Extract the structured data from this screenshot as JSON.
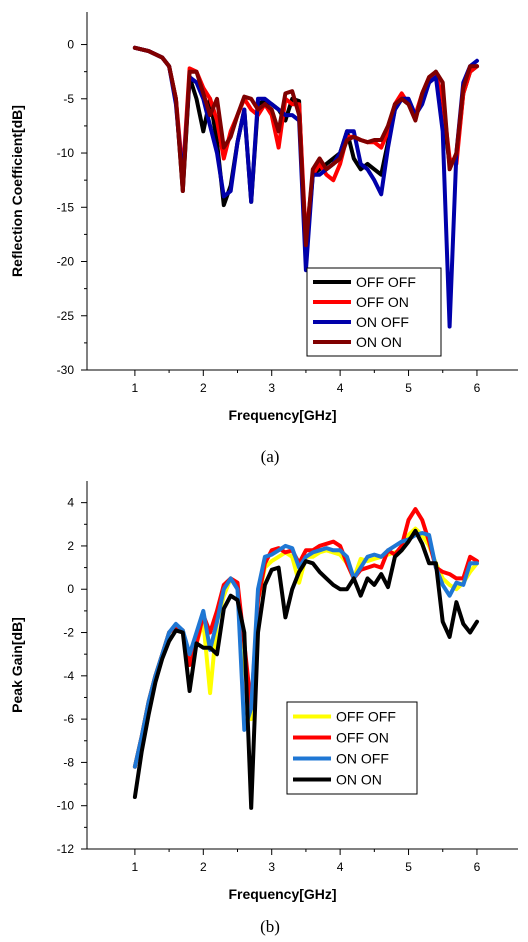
{
  "chart_data": [
    {
      "type": "line",
      "caption": "(a)",
      "xlabel": "Frequency[GHz]",
      "ylabel": "Reflection Coefficient[dB]",
      "xlim": [
        0.3,
        6.6
      ],
      "ylim": [
        -30,
        3
      ],
      "xticks": [
        1,
        2,
        3,
        4,
        5,
        6
      ],
      "yticks": [
        0,
        -5,
        -10,
        -15,
        -20,
        -25,
        -30
      ],
      "legend_position": "bottom-right",
      "series": [
        {
          "name": "OFF OFF",
          "color": "#000000",
          "x": [
            1.0,
            1.2,
            1.4,
            1.5,
            1.6,
            1.7,
            1.8,
            1.9,
            2.0,
            2.1,
            2.2,
            2.3,
            2.4,
            2.5,
            2.6,
            2.7,
            2.8,
            2.9,
            3.0,
            3.1,
            3.2,
            3.3,
            3.4,
            3.5,
            3.6,
            3.7,
            3.8,
            3.9,
            4.0,
            4.1,
            4.2,
            4.3,
            4.4,
            4.5,
            4.6,
            4.7,
            4.8,
            4.9,
            5.0,
            5.1,
            5.2,
            5.3,
            5.4,
            5.5,
            5.6,
            5.7,
            5.8,
            5.9,
            6.0
          ],
          "y": [
            -0.3,
            -0.6,
            -1.2,
            -2.0,
            -5.0,
            -13.5,
            -3.0,
            -5.0,
            -8.0,
            -5.0,
            -9.0,
            -14.8,
            -13.0,
            -9.0,
            -6.0,
            -14.5,
            -5.5,
            -5.2,
            -5.5,
            -6.0,
            -7.0,
            -5.0,
            -5.2,
            -19.5,
            -12.0,
            -11.5,
            -11.0,
            -10.5,
            -10.0,
            -8.0,
            -10.5,
            -11.5,
            -11.0,
            -11.5,
            -12.0,
            -9.0,
            -6.0,
            -5.0,
            -5.5,
            -6.5,
            -5.0,
            -3.5,
            -2.5,
            -6.0,
            -11.0,
            -10.5,
            -4.5,
            -2.5,
            -2.0
          ]
        },
        {
          "name": "OFF ON",
          "color": "#ff0000",
          "x": [
            1.0,
            1.2,
            1.4,
            1.5,
            1.6,
            1.7,
            1.8,
            1.9,
            2.0,
            2.1,
            2.2,
            2.3,
            2.4,
            2.5,
            2.6,
            2.7,
            2.8,
            2.9,
            3.0,
            3.1,
            3.2,
            3.3,
            3.4,
            3.5,
            3.6,
            3.7,
            3.8,
            3.9,
            4.0,
            4.1,
            4.2,
            4.3,
            4.4,
            4.5,
            4.6,
            4.7,
            4.8,
            4.9,
            5.0,
            5.1,
            5.2,
            5.3,
            5.4,
            5.5,
            5.6,
            5.7,
            5.8,
            5.9,
            6.0
          ],
          "y": [
            -0.3,
            -0.6,
            -1.2,
            -2.0,
            -5.0,
            -12.0,
            -2.2,
            -2.5,
            -4.0,
            -5.0,
            -7.0,
            -10.5,
            -8.0,
            -6.5,
            -5.0,
            -6.0,
            -6.5,
            -5.5,
            -6.5,
            -9.5,
            -5.0,
            -5.5,
            -5.5,
            -18.0,
            -12.0,
            -11.0,
            -12.0,
            -12.5,
            -11.0,
            -8.5,
            -8.5,
            -8.8,
            -9.0,
            -9.0,
            -9.5,
            -8.0,
            -5.5,
            -4.5,
            -5.5,
            -6.5,
            -4.5,
            -3.0,
            -2.8,
            -5.0,
            -10.5,
            -11.0,
            -4.5,
            -2.5,
            -2.0
          ]
        },
        {
          "name": "ON OFF",
          "color": "#0000aa",
          "x": [
            1.0,
            1.2,
            1.4,
            1.5,
            1.6,
            1.7,
            1.8,
            1.9,
            2.0,
            2.1,
            2.2,
            2.3,
            2.4,
            2.5,
            2.6,
            2.7,
            2.8,
            2.9,
            3.0,
            3.1,
            3.2,
            3.3,
            3.4,
            3.5,
            3.6,
            3.7,
            3.8,
            3.9,
            4.0,
            4.1,
            4.2,
            4.3,
            4.4,
            4.5,
            4.6,
            4.7,
            4.8,
            4.9,
            5.0,
            5.1,
            5.2,
            5.3,
            5.4,
            5.5,
            5.6,
            5.7,
            5.8,
            5.9,
            6.0
          ],
          "y": [
            -0.3,
            -0.6,
            -1.2,
            -2.0,
            -5.5,
            -12.5,
            -3.0,
            -3.5,
            -5.0,
            -7.5,
            -10.0,
            -14.0,
            -13.5,
            -9.0,
            -6.0,
            -14.5,
            -5.0,
            -5.0,
            -5.5,
            -6.0,
            -6.5,
            -6.5,
            -7.0,
            -20.8,
            -12.0,
            -12.0,
            -11.5,
            -11.0,
            -10.0,
            -8.0,
            -8.0,
            -11.0,
            -11.5,
            -12.5,
            -13.8,
            -9.5,
            -6.0,
            -5.0,
            -5.0,
            -6.5,
            -5.5,
            -3.5,
            -3.0,
            -8.0,
            -26.0,
            -10.0,
            -3.5,
            -2.0,
            -1.5
          ]
        },
        {
          "name": "ON ON",
          "color": "#800000",
          "x": [
            1.0,
            1.2,
            1.4,
            1.5,
            1.6,
            1.7,
            1.8,
            1.9,
            2.0,
            2.1,
            2.2,
            2.3,
            2.4,
            2.5,
            2.6,
            2.7,
            2.8,
            2.9,
            3.0,
            3.1,
            3.2,
            3.3,
            3.4,
            3.5,
            3.6,
            3.7,
            3.8,
            3.9,
            4.0,
            4.1,
            4.2,
            4.3,
            4.4,
            4.5,
            4.6,
            4.7,
            4.8,
            4.9,
            5.0,
            5.1,
            5.2,
            5.3,
            5.4,
            5.5,
            5.6,
            5.7,
            5.8,
            5.9,
            6.0
          ],
          "y": [
            -0.3,
            -0.6,
            -1.2,
            -2.0,
            -5.0,
            -13.5,
            -2.5,
            -2.5,
            -4.5,
            -6.5,
            -5.0,
            -9.5,
            -8.5,
            -6.5,
            -4.8,
            -5.0,
            -6.0,
            -5.5,
            -6.0,
            -8.0,
            -4.5,
            -4.3,
            -6.5,
            -18.5,
            -11.5,
            -10.5,
            -11.5,
            -11.0,
            -10.5,
            -8.8,
            -8.5,
            -8.8,
            -9.0,
            -8.8,
            -8.8,
            -7.5,
            -5.5,
            -5.0,
            -5.5,
            -7.0,
            -4.5,
            -3.0,
            -2.5,
            -3.5,
            -11.5,
            -10.0,
            -4.0,
            -2.0,
            -2.0
          ]
        }
      ]
    },
    {
      "type": "line",
      "caption": "(b)",
      "xlabel": "Frequency[GHz]",
      "ylabel": "Peak Gain[dB]",
      "xlim": [
        0.3,
        6.6
      ],
      "ylim": [
        -12,
        5
      ],
      "xticks": [
        1,
        2,
        3,
        4,
        5,
        6
      ],
      "yticks": [
        4,
        2,
        0,
        -2,
        -4,
        -6,
        -8,
        -10,
        -12
      ],
      "legend_position": "bottom-right",
      "series": [
        {
          "name": "OFF OFF",
          "color": "#ffff00",
          "x": [
            1.0,
            1.1,
            1.2,
            1.3,
            1.4,
            1.5,
            1.6,
            1.7,
            1.8,
            1.9,
            2.0,
            2.1,
            2.2,
            2.3,
            2.4,
            2.5,
            2.6,
            2.7,
            2.8,
            2.9,
            3.0,
            3.1,
            3.2,
            3.3,
            3.4,
            3.5,
            3.6,
            3.7,
            3.8,
            3.9,
            4.0,
            4.1,
            4.2,
            4.3,
            4.4,
            4.5,
            4.6,
            4.7,
            4.8,
            4.9,
            5.0,
            5.1,
            5.2,
            5.3,
            5.4,
            5.5,
            5.6,
            5.7,
            5.8,
            5.9,
            6.0
          ],
          "y": [
            -8.2,
            -6.8,
            -5.2,
            -4.0,
            -3.0,
            -2.0,
            -1.7,
            -1.9,
            -3.5,
            -2.5,
            -1.5,
            -4.8,
            -1.5,
            -0.3,
            0.5,
            0.2,
            -3.5,
            -6.0,
            -0.5,
            1.0,
            1.3,
            1.5,
            1.7,
            1.5,
            0.3,
            1.5,
            1.5,
            1.7,
            1.8,
            1.7,
            1.6,
            1.2,
            0.5,
            1.4,
            1.3,
            1.4,
            1.5,
            1.6,
            1.7,
            1.8,
            2.5,
            2.8,
            2.5,
            2.0,
            1.2,
            0.5,
            0.2,
            0.0,
            0.3,
            0.8,
            1.2
          ]
        },
        {
          "name": "OFF ON",
          "color": "#ff0000",
          "x": [
            1.0,
            1.1,
            1.2,
            1.3,
            1.4,
            1.5,
            1.6,
            1.7,
            1.8,
            1.9,
            2.0,
            2.1,
            2.2,
            2.3,
            2.4,
            2.5,
            2.6,
            2.7,
            2.8,
            2.9,
            3.0,
            3.1,
            3.2,
            3.3,
            3.4,
            3.5,
            3.6,
            3.7,
            3.8,
            3.9,
            4.0,
            4.1,
            4.2,
            4.3,
            4.4,
            4.5,
            4.6,
            4.7,
            4.8,
            4.9,
            5.0,
            5.1,
            5.2,
            5.3,
            5.4,
            5.5,
            5.6,
            5.7,
            5.8,
            5.9,
            6.0
          ],
          "y": [
            -8.2,
            -6.8,
            -5.2,
            -4.0,
            -3.0,
            -2.0,
            -1.7,
            -1.9,
            -3.5,
            -2.5,
            -1.2,
            -2.0,
            -1.0,
            0.2,
            0.5,
            0.3,
            -2.5,
            -5.5,
            -0.5,
            1.2,
            1.8,
            1.9,
            1.7,
            1.8,
            1.2,
            1.8,
            1.8,
            2.0,
            2.1,
            2.2,
            2.0,
            1.2,
            0.5,
            0.9,
            1.0,
            1.1,
            1.0,
            1.8,
            1.6,
            2.0,
            3.2,
            3.7,
            3.2,
            2.2,
            1.0,
            0.8,
            0.7,
            0.5,
            0.5,
            1.5,
            1.3
          ]
        },
        {
          "name": "ON OFF",
          "color": "#1f77d4",
          "x": [
            1.0,
            1.1,
            1.2,
            1.3,
            1.4,
            1.5,
            1.6,
            1.7,
            1.8,
            1.9,
            2.0,
            2.1,
            2.2,
            2.3,
            2.4,
            2.5,
            2.6,
            2.7,
            2.8,
            2.9,
            3.0,
            3.1,
            3.2,
            3.3,
            3.4,
            3.5,
            3.6,
            3.7,
            3.8,
            3.9,
            4.0,
            4.1,
            4.2,
            4.3,
            4.4,
            4.5,
            4.6,
            4.7,
            4.8,
            4.9,
            5.0,
            5.1,
            5.2,
            5.3,
            5.4,
            5.5,
            5.6,
            5.7,
            5.8,
            5.9,
            6.0
          ],
          "y": [
            -8.2,
            -6.8,
            -5.2,
            -4.0,
            -3.0,
            -2.0,
            -1.6,
            -1.9,
            -3.0,
            -2.0,
            -1.0,
            -2.8,
            -1.5,
            0.0,
            0.5,
            0.0,
            -6.5,
            -5.5,
            0.0,
            1.5,
            1.6,
            1.8,
            2.0,
            1.9,
            1.0,
            1.5,
            1.7,
            1.8,
            1.9,
            1.8,
            1.8,
            1.5,
            0.5,
            1.0,
            1.5,
            1.6,
            1.5,
            1.8,
            2.0,
            2.2,
            2.3,
            2.5,
            2.6,
            2.5,
            1.0,
            0.2,
            -0.3,
            0.3,
            0.2,
            1.2,
            1.2
          ]
        },
        {
          "name": "ON ON",
          "color": "#000000",
          "x": [
            1.0,
            1.1,
            1.2,
            1.3,
            1.4,
            1.5,
            1.6,
            1.7,
            1.8,
            1.9,
            2.0,
            2.1,
            2.2,
            2.3,
            2.4,
            2.5,
            2.6,
            2.7,
            2.8,
            2.9,
            3.0,
            3.1,
            3.2,
            3.3,
            3.4,
            3.5,
            3.6,
            3.7,
            3.8,
            3.9,
            4.0,
            4.1,
            4.2,
            4.3,
            4.4,
            4.5,
            4.6,
            4.7,
            4.8,
            4.9,
            5.0,
            5.1,
            5.2,
            5.3,
            5.4,
            5.5,
            5.6,
            5.7,
            5.8,
            5.9,
            6.0
          ],
          "y": [
            -9.6,
            -7.5,
            -5.8,
            -4.3,
            -3.2,
            -2.4,
            -1.9,
            -2.0,
            -4.7,
            -2.5,
            -2.7,
            -2.7,
            -3.0,
            -0.9,
            -0.3,
            -0.5,
            -2.0,
            -10.1,
            -2.0,
            0.2,
            0.9,
            1.0,
            -1.3,
            0.0,
            0.8,
            1.3,
            1.2,
            0.8,
            0.5,
            0.2,
            0.0,
            0.0,
            0.5,
            -0.3,
            0.5,
            0.2,
            0.7,
            0.1,
            1.5,
            1.8,
            2.2,
            2.7,
            2.1,
            1.2,
            1.2,
            -1.5,
            -2.2,
            -0.6,
            -1.6,
            -2.0,
            -1.5
          ]
        }
      ]
    }
  ]
}
